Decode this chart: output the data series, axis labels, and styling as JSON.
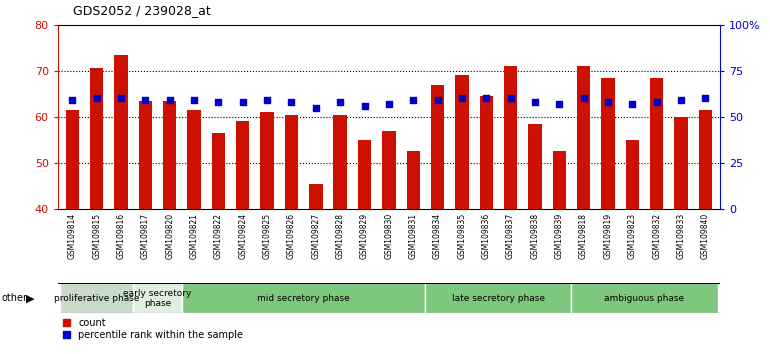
{
  "title": "GDS2052 / 239028_at",
  "samples": [
    "GSM109814",
    "GSM109815",
    "GSM109816",
    "GSM109817",
    "GSM109820",
    "GSM109821",
    "GSM109822",
    "GSM109824",
    "GSM109825",
    "GSM109826",
    "GSM109827",
    "GSM109828",
    "GSM109829",
    "GSM109830",
    "GSM109831",
    "GSM109834",
    "GSM109835",
    "GSM109836",
    "GSM109837",
    "GSM109838",
    "GSM109839",
    "GSM109818",
    "GSM109819",
    "GSM109823",
    "GSM109832",
    "GSM109833",
    "GSM109840"
  ],
  "count_values": [
    61.5,
    70.5,
    73.5,
    63.5,
    63.5,
    61.5,
    56.5,
    59.0,
    61.0,
    60.5,
    45.5,
    60.5,
    55.0,
    57.0,
    52.5,
    67.0,
    69.0,
    64.5,
    71.0,
    58.5,
    52.5,
    71.0,
    68.5,
    55.0,
    68.5,
    60.0,
    61.5
  ],
  "percentile_values": [
    59,
    60,
    60,
    59,
    59,
    59,
    58,
    58,
    59,
    58,
    55,
    58,
    56,
    57,
    59,
    59,
    60,
    60,
    60,
    58,
    57,
    60,
    58,
    57,
    58,
    59,
    60
  ],
  "bar_color": "#cc1100",
  "dot_color": "#0000cc",
  "ylim_left": [
    40,
    80
  ],
  "ylim_right": [
    0,
    100
  ],
  "yticks_left": [
    40,
    50,
    60,
    70,
    80
  ],
  "ytick_labels_left": [
    "40",
    "50",
    "60",
    "70",
    "80"
  ],
  "yticks_right": [
    0,
    25,
    50,
    75,
    100
  ],
  "ytick_labels_right": [
    "0",
    "25",
    "50",
    "75",
    "100%"
  ],
  "grid_yticks": [
    50,
    60,
    70
  ],
  "phases": [
    {
      "label": "proliferative phase",
      "start": 0,
      "end": 3,
      "color": "#c8dac8"
    },
    {
      "label": "early secretory\nphase",
      "start": 3,
      "end": 5,
      "color": "#dff0df"
    },
    {
      "label": "mid secretory phase",
      "start": 5,
      "end": 15,
      "color": "#7ec87e"
    },
    {
      "label": "late secretory phase",
      "start": 15,
      "end": 21,
      "color": "#7ec87e"
    },
    {
      "label": "ambiguous phase",
      "start": 21,
      "end": 27,
      "color": "#7ec87e"
    }
  ],
  "other_label": "other",
  "legend_count": "count",
  "legend_percentile": "percentile rank within the sample",
  "left_tick_color": "#cc1100",
  "right_tick_color": "#0000cc",
  "bar_width": 0.55,
  "dot_size": 25
}
